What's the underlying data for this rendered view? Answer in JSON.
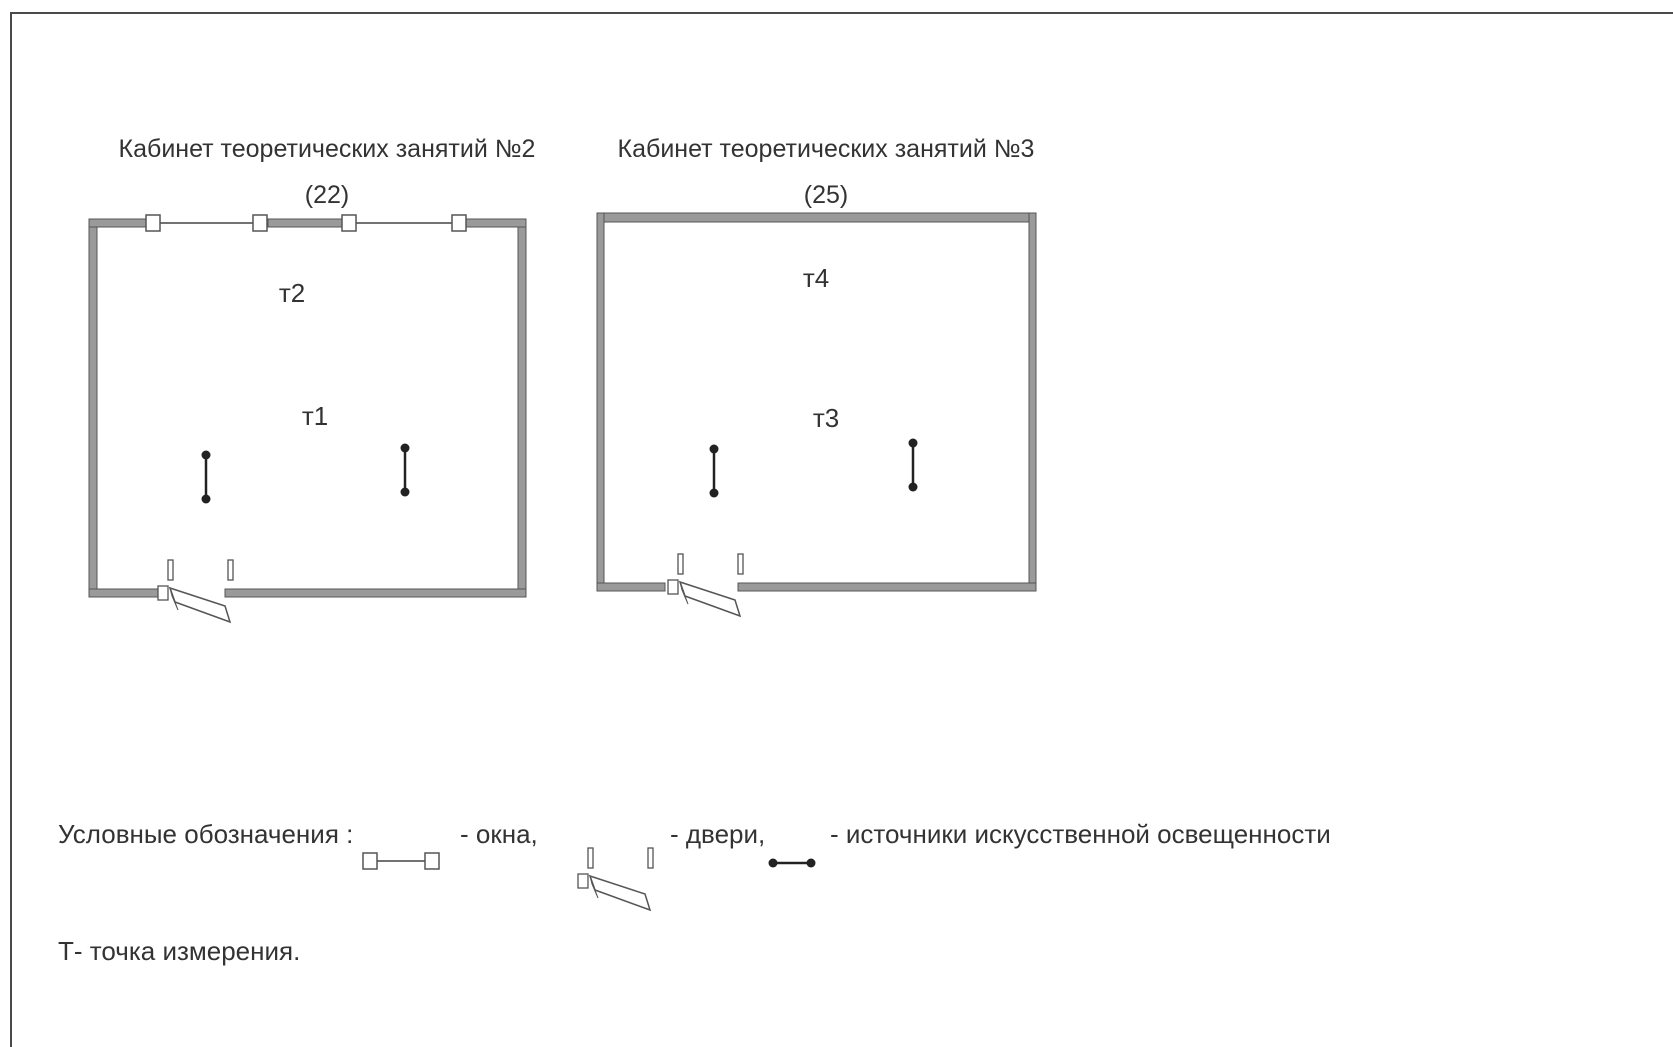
{
  "rooms": [
    {
      "title": "Кабинет теоретических занятий №2",
      "number": "(22)",
      "points": [
        "т2",
        "т1"
      ]
    },
    {
      "title": "Кабинет теоретических занятий №3",
      "number": "(25)",
      "points": [
        "т4",
        "т3"
      ]
    }
  ],
  "legend": {
    "heading": "Условные обозначения :",
    "windows": "- окна,",
    "doors": "- двери,",
    "lights": "- источники искусственной освещенности"
  },
  "note": "Т- точка измерения."
}
